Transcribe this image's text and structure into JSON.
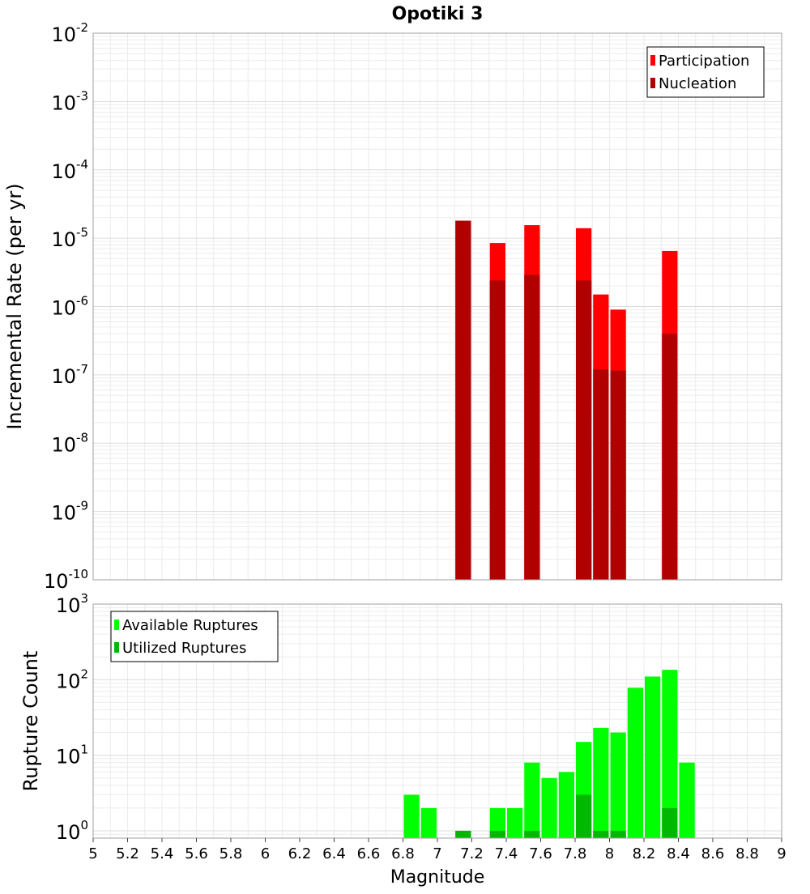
{
  "chart_data": [
    {
      "type": "bar",
      "title": "Opotiki 3",
      "xlabel": "",
      "ylabel": "Incremental Rate (per yr)",
      "y_scale": "log",
      "ylim": [
        1e-10,
        0.01
      ],
      "xlim": [
        5,
        9
      ],
      "y_ticks": [
        {
          "value": 1e-10,
          "base": "10",
          "exp": "-10"
        },
        {
          "value": 1e-09,
          "base": "10",
          "exp": "-9"
        },
        {
          "value": 1e-08,
          "base": "10",
          "exp": "-8"
        },
        {
          "value": 1e-07,
          "base": "10",
          "exp": "-7"
        },
        {
          "value": 1e-06,
          "base": "10",
          "exp": "-6"
        },
        {
          "value": 1e-05,
          "base": "10",
          "exp": "-5"
        },
        {
          "value": 0.0001,
          "base": "10",
          "exp": "-4"
        },
        {
          "value": 0.001,
          "base": "10",
          "exp": "-3"
        },
        {
          "value": 0.01,
          "base": "10",
          "exp": "-2"
        }
      ],
      "grid": true,
      "legend_position": "top-right",
      "legend": [
        "Participation",
        "Nucleation"
      ],
      "bin_width": 0.1,
      "x": [
        7.15,
        7.35,
        7.55,
        7.85,
        7.95,
        8.05,
        8.35
      ],
      "series": [
        {
          "name": "Participation",
          "color": "#ff0000",
          "values": [
            1.8e-05,
            8.5e-06,
            1.55e-05,
            1.4e-05,
            1.5e-06,
            9e-07,
            6.5e-06
          ]
        },
        {
          "name": "Nucleation",
          "color": "#b00000",
          "values": [
            1.8e-05,
            2.4e-06,
            2.9e-06,
            2.4e-06,
            1.2e-07,
            1.15e-07,
            4e-07
          ]
        }
      ]
    },
    {
      "type": "bar",
      "title": "",
      "xlabel": "Magnitude",
      "ylabel": "Rupture Count",
      "y_scale": "log",
      "ylim": [
        0.8,
        1000
      ],
      "xlim": [
        5,
        9
      ],
      "x_ticks": [
        "5",
        "5.2",
        "5.4",
        "5.6",
        "5.8",
        "6",
        "6.2",
        "6.4",
        "6.6",
        "6.8",
        "7",
        "7.2",
        "7.4",
        "7.6",
        "7.8",
        "8",
        "8.2",
        "8.4",
        "8.6",
        "8.8",
        "9"
      ],
      "y_ticks": [
        {
          "value": 1,
          "base": "10",
          "exp": "0"
        },
        {
          "value": 10,
          "base": "10",
          "exp": "1"
        },
        {
          "value": 100,
          "base": "10",
          "exp": "2"
        },
        {
          "value": 1000,
          "base": "10",
          "exp": "3"
        }
      ],
      "grid": true,
      "legend_position": "top-left",
      "legend": [
        "Available Ruptures",
        "Utilized Ruptures"
      ],
      "bin_width": 0.1,
      "x": [
        6.85,
        6.95,
        7.15,
        7.35,
        7.45,
        7.55,
        7.65,
        7.75,
        7.85,
        7.95,
        8.05,
        8.15,
        8.25,
        8.35,
        8.45
      ],
      "series": [
        {
          "name": "Available Ruptures",
          "color": "#00ff00",
          "values": [
            3,
            2,
            1,
            2,
            2,
            8,
            5,
            6,
            15,
            23,
            20,
            78,
            110,
            135,
            8
          ]
        },
        {
          "name": "Utilized Ruptures",
          "color": "#00b800",
          "values": [
            0,
            0,
            1,
            1,
            0,
            1,
            0,
            0,
            3,
            1,
            1,
            0,
            0,
            2,
            0
          ]
        }
      ]
    }
  ]
}
